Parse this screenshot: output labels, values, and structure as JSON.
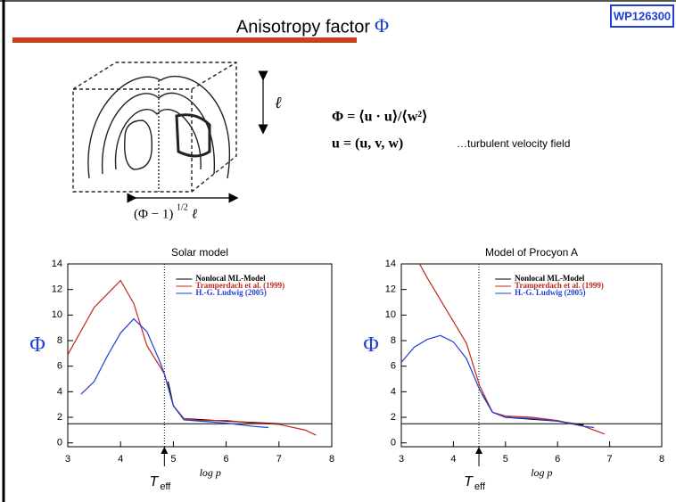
{
  "header": {
    "title": "Anisotropy factor",
    "title_symbol": "Φ",
    "badge": "WP126300"
  },
  "diagram": {
    "height_label": "ℓ",
    "width_label": "(Φ − 1)",
    "width_exponent": "1/2",
    "width_suffix": "ℓ"
  },
  "formulas": {
    "definition": "Φ = ⟨u · u⟩/⟨w²⟩",
    "velocity": "u = (u, v, w)",
    "velocity_note": "…turbulent velocity field"
  },
  "chart_data": [
    {
      "type": "line",
      "title": "Solar model",
      "y_label": "Φ",
      "x_label": "log p",
      "annotation": "T",
      "annotation_sub": "eff",
      "vline": 4.83,
      "hline": 1.5,
      "xlim": [
        3,
        8
      ],
      "ylim": [
        -0.3,
        14
      ],
      "xticks": [
        3,
        4,
        5,
        6,
        7,
        8
      ],
      "yticks": [
        0,
        2,
        4,
        6,
        8,
        10,
        12,
        14
      ],
      "series": [
        {
          "name": "Nonlocal ML-Model",
          "color": "#000000",
          "x": [
            4.9,
            5.0,
            5.2,
            6.0,
            7.0
          ],
          "values": [
            4.8,
            2.9,
            1.9,
            1.7,
            1.5
          ]
        },
        {
          "name": "Tramperdach et al. (1999)",
          "color": "#c0281c",
          "x": [
            3.0,
            3.5,
            4.0,
            4.25,
            4.5,
            4.83,
            5.0,
            5.2,
            5.5,
            6.0,
            6.5,
            7.0,
            7.5,
            7.7
          ],
          "values": [
            6.9,
            10.6,
            12.7,
            10.9,
            7.6,
            5.4,
            2.9,
            1.9,
            1.75,
            1.75,
            1.55,
            1.45,
            1.0,
            0.6
          ]
        },
        {
          "name": "H.-G. Ludwig (2005)",
          "color": "#1f3fd8",
          "x": [
            3.25,
            3.5,
            3.75,
            4.0,
            4.25,
            4.5,
            4.75,
            4.83,
            5.0,
            5.2,
            5.5,
            6.0,
            6.5,
            6.8
          ],
          "values": [
            3.8,
            4.8,
            6.8,
            8.6,
            9.7,
            8.7,
            6.3,
            5.4,
            2.9,
            1.8,
            1.7,
            1.55,
            1.3,
            1.2
          ]
        }
      ]
    },
    {
      "type": "line",
      "title": "Model of Procyon A",
      "y_label": "Φ",
      "x_label": "log p",
      "annotation": "T",
      "annotation_sub": "eff",
      "vline": 4.49,
      "hline": 1.5,
      "xlim": [
        3,
        8
      ],
      "ylim": [
        -0.3,
        14
      ],
      "xticks": [
        3,
        4,
        5,
        6,
        7,
        8
      ],
      "yticks": [
        0,
        2,
        4,
        6,
        8,
        10,
        12,
        14
      ],
      "series": [
        {
          "name": "Nonlocal ML-Model",
          "color": "#000000",
          "x": [
            4.55,
            4.75,
            5.0,
            6.0,
            6.5
          ],
          "values": [
            3.8,
            2.4,
            2.0,
            1.7,
            1.4
          ]
        },
        {
          "name": "Tramperdach et al. (1999)",
          "color": "#c0281c",
          "x": [
            3.35,
            3.5,
            4.0,
            4.25,
            4.5,
            4.75,
            5.0,
            5.5,
            6.0,
            6.5,
            6.9
          ],
          "values": [
            14,
            12.9,
            9.5,
            7.8,
            4.5,
            2.4,
            2.1,
            2.0,
            1.75,
            1.3,
            0.7
          ]
        },
        {
          "name": "H.-G. Ludwig (2005)",
          "color": "#1f3fd8",
          "x": [
            3.0,
            3.25,
            3.5,
            3.75,
            4.0,
            4.25,
            4.5,
            4.75,
            5.0,
            5.5,
            6.0,
            6.5,
            6.7
          ],
          "values": [
            6.3,
            7.5,
            8.1,
            8.4,
            7.9,
            6.6,
            4.2,
            2.4,
            2.0,
            1.9,
            1.7,
            1.3,
            1.2
          ]
        }
      ]
    }
  ]
}
